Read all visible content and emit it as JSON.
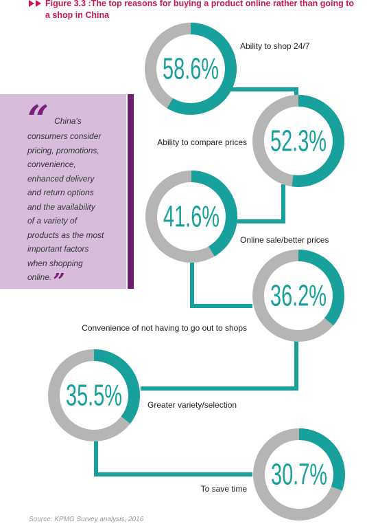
{
  "chart_data": {
    "type": "donut",
    "title": "Figure 3.3 :The top reasons for buying a product online rather than going to a shop in China",
    "categories": [
      "Ability to shop 24/7",
      "Ability to compare prices",
      "Online sale/better prices",
      "Convenience of not having to go out to shops",
      "Greater variety/selection",
      "To save time"
    ],
    "values": [
      58.6,
      52.3,
      41.6,
      36.2,
      35.5,
      30.7
    ],
    "value_labels": [
      "58.6%",
      "52.3%",
      "41.6%",
      "36.2%",
      "35.5%",
      "30.7%"
    ],
    "ylim": [
      0,
      100
    ],
    "color": "#17a09c",
    "rest_color": "#b5b5b5",
    "quote": [
      "China's",
      "consumers consider",
      "pricing, promotions,",
      "convenience,",
      "enhanced delivery",
      "and return options",
      "and the availability",
      "of a variety of",
      "products as the most",
      "important factors",
      "when shopping",
      "online."
    ],
    "source": "Source: KPMG Survey analysis, 2016"
  }
}
